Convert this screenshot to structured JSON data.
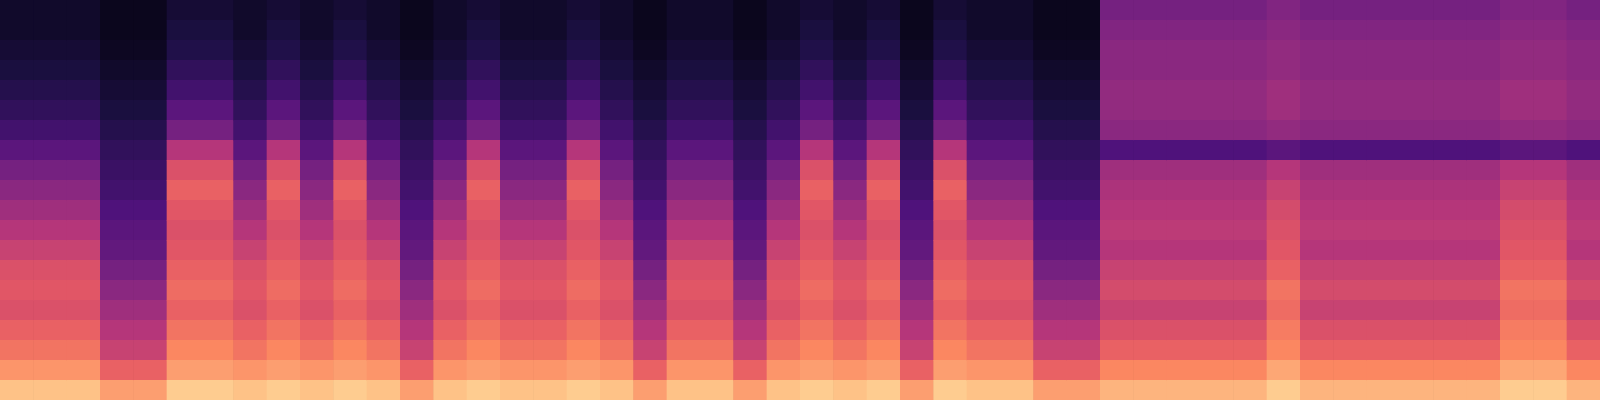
{
  "chart_data": {
    "type": "heatmap",
    "tick_labels": false,
    "color_range": [
      0,
      100
    ],
    "cells": [
      [
        8,
        8,
        10,
        12,
        15,
        18,
        22,
        28,
        35,
        40,
        45,
        50,
        55,
        60,
        62,
        60,
        65,
        70,
        78,
        88
      ],
      [
        8,
        8,
        10,
        12,
        15,
        18,
        22,
        28,
        35,
        40,
        45,
        50,
        55,
        60,
        62,
        60,
        65,
        70,
        78,
        88
      ],
      [
        8,
        8,
        10,
        12,
        15,
        18,
        22,
        28,
        35,
        40,
        45,
        50,
        55,
        60,
        62,
        60,
        65,
        70,
        78,
        88
      ],
      [
        5,
        5,
        6,
        8,
        10,
        12,
        15,
        18,
        20,
        22,
        25,
        28,
        30,
        35,
        40,
        45,
        50,
        55,
        65,
        80
      ],
      [
        5,
        5,
        6,
        8,
        10,
        12,
        15,
        18,
        20,
        22,
        25,
        28,
        30,
        35,
        40,
        45,
        50,
        55,
        65,
        80
      ],
      [
        10,
        12,
        14,
        18,
        22,
        28,
        35,
        50,
        60,
        65,
        62,
        60,
        62,
        65,
        68,
        65,
        70,
        75,
        80,
        90
      ],
      [
        10,
        12,
        14,
        18,
        22,
        28,
        35,
        50,
        60,
        65,
        62,
        60,
        62,
        65,
        68,
        65,
        70,
        75,
        80,
        90
      ],
      [
        8,
        8,
        10,
        12,
        15,
        18,
        22,
        28,
        35,
        40,
        45,
        50,
        55,
        60,
        62,
        60,
        65,
        70,
        78,
        88
      ],
      [
        10,
        12,
        14,
        18,
        22,
        28,
        35,
        50,
        60,
        65,
        62,
        60,
        62,
        65,
        68,
        65,
        70,
        75,
        80,
        90
      ],
      [
        8,
        8,
        10,
        12,
        15,
        18,
        22,
        28,
        35,
        40,
        45,
        50,
        55,
        60,
        62,
        60,
        65,
        70,
        78,
        88
      ],
      [
        10,
        12,
        14,
        18,
        22,
        28,
        35,
        50,
        60,
        65,
        62,
        60,
        62,
        65,
        68,
        65,
        70,
        75,
        80,
        90
      ],
      [
        8,
        8,
        10,
        12,
        15,
        18,
        22,
        28,
        35,
        40,
        45,
        50,
        55,
        60,
        62,
        60,
        65,
        70,
        78,
        88
      ],
      [
        5,
        5,
        6,
        8,
        10,
        12,
        15,
        18,
        20,
        22,
        25,
        28,
        30,
        35,
        40,
        45,
        50,
        55,
        65,
        80
      ],
      [
        8,
        8,
        10,
        12,
        15,
        18,
        22,
        28,
        35,
        40,
        45,
        50,
        55,
        60,
        62,
        60,
        65,
        70,
        78,
        88
      ],
      [
        10,
        12,
        14,
        18,
        22,
        28,
        35,
        50,
        60,
        65,
        62,
        60,
        62,
        65,
        68,
        65,
        70,
        75,
        80,
        90
      ],
      [
        8,
        8,
        10,
        12,
        15,
        18,
        22,
        28,
        35,
        40,
        45,
        50,
        55,
        60,
        62,
        60,
        65,
        70,
        78,
        88
      ],
      [
        8,
        8,
        10,
        12,
        15,
        18,
        22,
        28,
        35,
        40,
        45,
        50,
        55,
        60,
        62,
        60,
        65,
        70,
        78,
        88
      ],
      [
        10,
        12,
        14,
        18,
        22,
        28,
        35,
        50,
        60,
        65,
        62,
        60,
        62,
        65,
        68,
        65,
        70,
        75,
        80,
        90
      ],
      [
        8,
        8,
        10,
        12,
        15,
        18,
        22,
        28,
        35,
        40,
        45,
        50,
        55,
        60,
        62,
        60,
        65,
        70,
        78,
        88
      ],
      [
        5,
        5,
        6,
        8,
        10,
        12,
        15,
        18,
        20,
        22,
        25,
        28,
        30,
        35,
        40,
        45,
        50,
        55,
        65,
        80
      ],
      [
        8,
        8,
        10,
        12,
        15,
        18,
        22,
        28,
        35,
        40,
        45,
        50,
        55,
        60,
        62,
        60,
        65,
        70,
        78,
        88
      ],
      [
        8,
        8,
        10,
        12,
        15,
        18,
        22,
        28,
        35,
        40,
        45,
        50,
        55,
        60,
        62,
        60,
        65,
        70,
        78,
        88
      ],
      [
        5,
        5,
        6,
        8,
        10,
        12,
        15,
        18,
        20,
        22,
        25,
        28,
        30,
        35,
        40,
        45,
        50,
        55,
        65,
        80
      ],
      [
        8,
        8,
        10,
        12,
        15,
        18,
        22,
        28,
        35,
        40,
        45,
        50,
        55,
        60,
        62,
        60,
        65,
        70,
        78,
        88
      ],
      [
        10,
        12,
        14,
        18,
        22,
        28,
        35,
        50,
        60,
        65,
        62,
        60,
        62,
        65,
        68,
        65,
        70,
        75,
        80,
        90
      ],
      [
        8,
        8,
        10,
        12,
        15,
        18,
        22,
        28,
        35,
        40,
        45,
        50,
        55,
        60,
        62,
        60,
        65,
        70,
        78,
        88
      ],
      [
        10,
        12,
        14,
        18,
        22,
        28,
        35,
        50,
        60,
        65,
        62,
        60,
        62,
        65,
        68,
        65,
        70,
        75,
        80,
        90
      ],
      [
        5,
        5,
        6,
        8,
        10,
        12,
        15,
        18,
        20,
        22,
        25,
        28,
        30,
        35,
        40,
        45,
        50,
        55,
        65,
        80
      ],
      [
        10,
        12,
        14,
        18,
        22,
        28,
        35,
        50,
        60,
        65,
        62,
        60,
        62,
        65,
        68,
        65,
        70,
        75,
        80,
        90
      ],
      [
        8,
        8,
        10,
        12,
        15,
        18,
        22,
        28,
        35,
        40,
        45,
        50,
        55,
        60,
        62,
        60,
        65,
        70,
        78,
        88
      ],
      [
        8,
        8,
        10,
        12,
        15,
        18,
        22,
        28,
        35,
        40,
        45,
        50,
        55,
        60,
        62,
        60,
        65,
        70,
        78,
        88
      ],
      [
        5,
        5,
        6,
        8,
        10,
        12,
        15,
        18,
        20,
        22,
        25,
        28,
        30,
        35,
        40,
        45,
        50,
        55,
        65,
        80
      ],
      [
        5,
        5,
        6,
        8,
        10,
        12,
        15,
        18,
        20,
        22,
        25,
        28,
        30,
        35,
        40,
        45,
        50,
        55,
        65,
        80
      ],
      [
        35,
        38,
        40,
        40,
        42,
        42,
        40,
        25,
        45,
        48,
        50,
        52,
        50,
        55,
        58,
        55,
        60,
        65,
        75,
        85
      ],
      [
        35,
        38,
        40,
        40,
        42,
        42,
        40,
        25,
        45,
        48,
        50,
        52,
        50,
        55,
        58,
        55,
        60,
        65,
        75,
        85
      ],
      [
        35,
        38,
        40,
        40,
        42,
        42,
        40,
        25,
        45,
        48,
        50,
        52,
        50,
        55,
        58,
        55,
        60,
        65,
        75,
        85
      ],
      [
        35,
        38,
        40,
        40,
        42,
        42,
        40,
        25,
        45,
        48,
        50,
        52,
        50,
        55,
        58,
        55,
        60,
        65,
        75,
        85
      ],
      [
        35,
        38,
        40,
        40,
        42,
        42,
        40,
        25,
        45,
        48,
        50,
        52,
        50,
        55,
        58,
        55,
        60,
        65,
        75,
        85
      ],
      [
        38,
        40,
        42,
        42,
        45,
        45,
        42,
        28,
        50,
        55,
        58,
        60,
        62,
        65,
        70,
        68,
        72,
        75,
        82,
        90
      ],
      [
        35,
        38,
        40,
        40,
        42,
        42,
        40,
        25,
        45,
        48,
        50,
        52,
        50,
        55,
        58,
        55,
        60,
        65,
        75,
        85
      ],
      [
        35,
        38,
        40,
        40,
        42,
        42,
        40,
        25,
        45,
        48,
        50,
        52,
        50,
        55,
        58,
        55,
        60,
        65,
        75,
        85
      ],
      [
        35,
        38,
        40,
        40,
        42,
        42,
        40,
        25,
        45,
        48,
        50,
        52,
        50,
        55,
        58,
        55,
        60,
        65,
        75,
        85
      ],
      [
        35,
        38,
        40,
        40,
        42,
        42,
        40,
        25,
        45,
        48,
        50,
        52,
        50,
        55,
        58,
        55,
        60,
        65,
        75,
        85
      ],
      [
        35,
        38,
        40,
        40,
        42,
        42,
        40,
        25,
        45,
        48,
        50,
        52,
        50,
        55,
        58,
        55,
        60,
        65,
        75,
        85
      ],
      [
        35,
        38,
        40,
        40,
        42,
        42,
        40,
        25,
        45,
        48,
        50,
        52,
        50,
        55,
        58,
        55,
        60,
        65,
        75,
        85
      ],
      [
        38,
        40,
        42,
        42,
        45,
        45,
        42,
        28,
        50,
        55,
        58,
        60,
        62,
        65,
        70,
        68,
        72,
        75,
        82,
        90
      ],
      [
        38,
        40,
        42,
        42,
        45,
        45,
        42,
        28,
        50,
        55,
        58,
        60,
        62,
        65,
        70,
        68,
        72,
        75,
        82,
        90
      ],
      [
        35,
        38,
        40,
        40,
        42,
        42,
        40,
        25,
        45,
        48,
        50,
        52,
        50,
        55,
        58,
        55,
        60,
        65,
        75,
        85
      ]
    ]
  }
}
